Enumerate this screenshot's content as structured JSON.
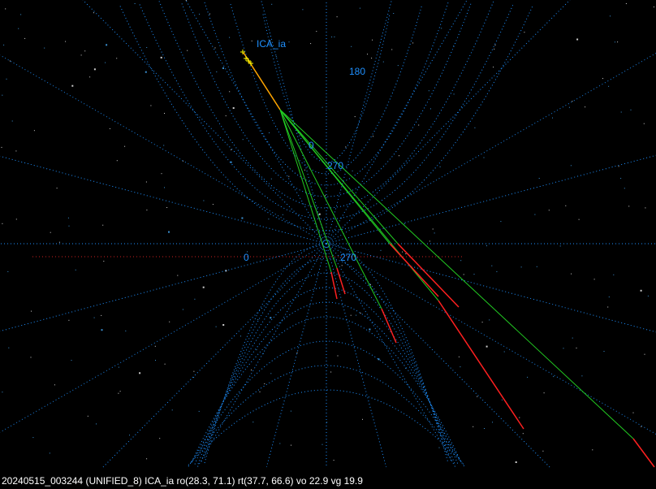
{
  "view": {
    "target_label": "ICA_ia",
    "angle_labels": [
      "180",
      "0",
      "270",
      "0",
      "270"
    ],
    "colors": {
      "grid": "#1e90ff",
      "track": "#ffa500",
      "ray": "#22cc22",
      "ray_end": "#ff2020",
      "marker": "#ffff00",
      "axis": "#cc2020"
    }
  },
  "status": {
    "text": "20240515_003244 (UNIFIED_8) ICA_ia ro(28.3, 71.1) rt(37.7, 66.6) vo 22.9 vg 19.9"
  }
}
